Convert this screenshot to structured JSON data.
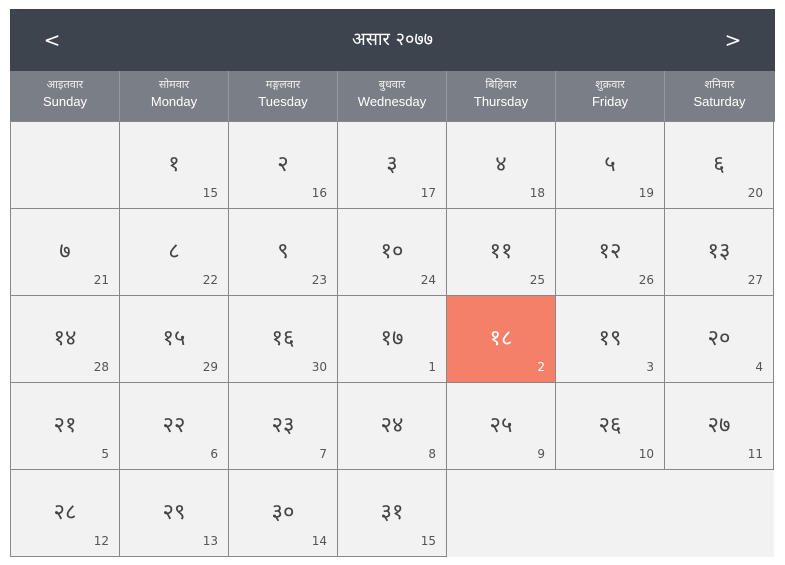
{
  "header": {
    "prev_label": "<",
    "title": "असार २०७७",
    "next_label": ">"
  },
  "weekdays": [
    {
      "np": "आइतवार",
      "en": "Sunday"
    },
    {
      "np": "सोमवार",
      "en": "Monday"
    },
    {
      "np": "मङ्गलवार",
      "en": "Tuesday"
    },
    {
      "np": "बुधवार",
      "en": "Wednesday"
    },
    {
      "np": "बिहिवार",
      "en": "Thursday"
    },
    {
      "np": "शुक्रवार",
      "en": "Friday"
    },
    {
      "np": "शनिवार",
      "en": "Saturday"
    }
  ],
  "days": [
    {
      "np": "१",
      "en": "15"
    },
    {
      "np": "२",
      "en": "16"
    },
    {
      "np": "३",
      "en": "17"
    },
    {
      "np": "४",
      "en": "18"
    },
    {
      "np": "५",
      "en": "19"
    },
    {
      "np": "६",
      "en": "20"
    },
    {
      "np": "७",
      "en": "21"
    },
    {
      "np": "८",
      "en": "22"
    },
    {
      "np": "९",
      "en": "23"
    },
    {
      "np": "१०",
      "en": "24"
    },
    {
      "np": "११",
      "en": "25"
    },
    {
      "np": "१२",
      "en": "26"
    },
    {
      "np": "१३",
      "en": "27"
    },
    {
      "np": "१४",
      "en": "28"
    },
    {
      "np": "१५",
      "en": "29"
    },
    {
      "np": "१६",
      "en": "30"
    },
    {
      "np": "१७",
      "en": "1"
    },
    {
      "np": "१८",
      "en": "2"
    },
    {
      "np": "१९",
      "en": "3"
    },
    {
      "np": "२०",
      "en": "4"
    },
    {
      "np": "२१",
      "en": "5"
    },
    {
      "np": "२२",
      "en": "6"
    },
    {
      "np": "२३",
      "en": "7"
    },
    {
      "np": "२४",
      "en": "8"
    },
    {
      "np": "२५",
      "en": "9"
    },
    {
      "np": "२६",
      "en": "10"
    },
    {
      "np": "२७",
      "en": "11"
    },
    {
      "np": "२८",
      "en": "12"
    },
    {
      "np": "२९",
      "en": "13"
    },
    {
      "np": "३०",
      "en": "14"
    },
    {
      "np": "३१",
      "en": "15"
    }
  ],
  "colors": {
    "header_bg": "#3e444e",
    "weekday_bg": "#7a7f87",
    "cell_bg": "#f2f2f2",
    "today_bg": "#f5806a"
  }
}
